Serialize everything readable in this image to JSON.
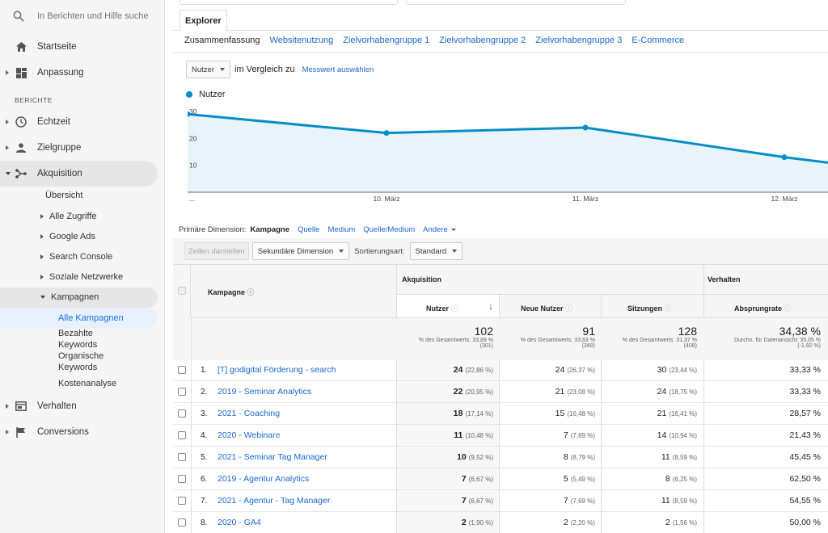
{
  "sidebar": {
    "search_placeholder": "In Berichten und Hilfe suche",
    "items_top": [
      {
        "label": "Startseite",
        "icon": "home-icon"
      },
      {
        "label": "Anpassung",
        "icon": "dashboard-icon"
      }
    ],
    "section_label": "BERICHTE",
    "reports": [
      {
        "label": "Echtzeit",
        "icon": "clock-icon"
      },
      {
        "label": "Zielgruppe",
        "icon": "person-icon"
      },
      {
        "label": "Akquisition",
        "icon": "acquisition-icon"
      }
    ],
    "acq_overview": "Übersicht",
    "acq_children": [
      "Alle Zugriffe",
      "Google Ads",
      "Search Console",
      "Soziale Netzwerke",
      "Kampagnen"
    ],
    "kampagnen_children": [
      "Alle Kampagnen",
      "Bezahlte Keywords",
      "Organische Keywords",
      "Kostenanalyse"
    ],
    "bottom": [
      {
        "label": "Verhalten",
        "icon": "behavior-icon"
      },
      {
        "label": "Conversions",
        "icon": "flag-icon"
      }
    ]
  },
  "main": {
    "tab": "Explorer",
    "subtabs": [
      "Zusammenfassung",
      "Websitenutzung",
      "Zielvorhabengruppe 1",
      "Zielvorhabengruppe 2",
      "Zielvorhabengruppe 3",
      "E-Commerce"
    ],
    "metric_select": "Nutzer",
    "compare_label": "im Vergleich zu",
    "compare_link": "Messwert auswählen",
    "legend": "Nutzer",
    "primary_dimension_label": "Primäre Dimension:",
    "dimensions": [
      "Kampagne",
      "Quelle",
      "Medium",
      "Quelle/Medium",
      "Andere"
    ],
    "toolbar": {
      "show_rows": "Zeilen darstellen",
      "secondary_dimension": "Sekundäre Dimension",
      "sort_label": "Sortierungsart:",
      "sort_value": "Standard"
    }
  },
  "chart_data": {
    "type": "line",
    "series": [
      {
        "name": "Nutzer",
        "color": "#058dc7",
        "values": [
          29,
          22,
          24,
          13,
          11
        ]
      }
    ],
    "x_labels": [
      "...",
      "10. März",
      "11. März",
      "12. März"
    ],
    "y_ticks": [
      "30",
      "20",
      "10"
    ],
    "ylim": [
      0,
      33
    ]
  },
  "table": {
    "headers": {
      "campaign": "Kampagne",
      "group_acq": "Akquisition",
      "group_beh": "Verhalten",
      "users": "Nutzer",
      "new_users": "Neue Nutzer",
      "sessions": "Sitzungen",
      "bounce": "Absprungrate"
    },
    "totals": {
      "users": "102",
      "users_sub1": "% des Gesamtwerts: 33,89 %",
      "users_sub2": "(301)",
      "new_users": "91",
      "new_users_sub1": "% des Gesamtwerts: 33,83 %",
      "new_users_sub2": "(269)",
      "sessions": "128",
      "sessions_sub1": "% des Gesamtwerts: 31,37 %",
      "sessions_sub2": "(408)",
      "bounce": "34,38 %",
      "bounce_sub1": "Durchn. für Datenansicht: 35,05 %",
      "bounce_sub2": "(-1,92 %)"
    },
    "rows": [
      {
        "n": "1.",
        "campaign": "[T] godigital Förderung - search",
        "users": "24",
        "users_pct": "(22,86 %)",
        "new_users": "24",
        "new_pct": "(26,37 %)",
        "sessions": "30",
        "sess_pct": "(23,44 %)",
        "bounce": "33,33 %"
      },
      {
        "n": "2.",
        "campaign": "2019 - Seminar Analytics",
        "users": "22",
        "users_pct": "(20,95 %)",
        "new_users": "21",
        "new_pct": "(23,08 %)",
        "sessions": "24",
        "sess_pct": "(18,75 %)",
        "bounce": "33,33 %"
      },
      {
        "n": "3.",
        "campaign": "2021 - Coaching",
        "users": "18",
        "users_pct": "(17,14 %)",
        "new_users": "15",
        "new_pct": "(16,48 %)",
        "sessions": "21",
        "sess_pct": "(16,41 %)",
        "bounce": "28,57 %"
      },
      {
        "n": "4.",
        "campaign": "2020 - Webinare",
        "users": "11",
        "users_pct": "(10,48 %)",
        "new_users": "7",
        "new_pct": "(7,69 %)",
        "sessions": "14",
        "sess_pct": "(10,94 %)",
        "bounce": "21,43 %"
      },
      {
        "n": "5.",
        "campaign": "2021 - Seminar Tag Manager",
        "users": "10",
        "users_pct": "(9,52 %)",
        "new_users": "8",
        "new_pct": "(8,79 %)",
        "sessions": "11",
        "sess_pct": "(8,59 %)",
        "bounce": "45,45 %"
      },
      {
        "n": "6.",
        "campaign": "2019 - Agentur Analytics",
        "users": "7",
        "users_pct": "(6,67 %)",
        "new_users": "5",
        "new_pct": "(5,49 %)",
        "sessions": "8",
        "sess_pct": "(6,25 %)",
        "bounce": "62,50 %"
      },
      {
        "n": "7.",
        "campaign": "2021 - Agentur - Tag Manager",
        "users": "7",
        "users_pct": "(6,67 %)",
        "new_users": "7",
        "new_pct": "(7,69 %)",
        "sessions": "11",
        "sess_pct": "(8,59 %)",
        "bounce": "54,55 %"
      },
      {
        "n": "8.",
        "campaign": "2020 - GA4",
        "users": "2",
        "users_pct": "(1,90 %)",
        "new_users": "2",
        "new_pct": "(2,20 %)",
        "sessions": "2",
        "sess_pct": "(1,56 %)",
        "bounce": "50,00 %"
      }
    ]
  }
}
